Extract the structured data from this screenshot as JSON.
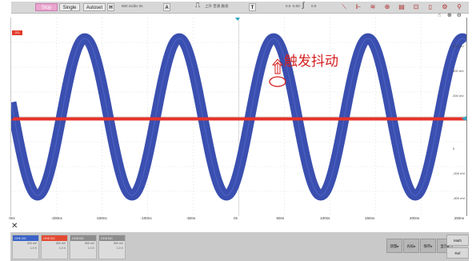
{
  "toolbar": {
    "run_label": "Stop",
    "single_label": "Single",
    "autoset_label": "Autoset",
    "h_label": "H",
    "timebase": "500 ns/div  0s",
    "a_label": "A",
    "trigger_mode": "上升 普通 触发",
    "t_label": "T",
    "trigger_level": "0.0  -0.00",
    "trigger_extra": "0.0"
  },
  "channel_tag": "2/1",
  "annotation": "触发抖动",
  "x_ticks": [
    "0ns",
    "-200ns",
    "-150ns",
    "-100ns",
    "-50ns",
    "0s",
    "50ns",
    "100ns",
    "150ns",
    "200ns",
    "250ns"
  ],
  "y_ticks": [
    "400 mV",
    "300 mV",
    "200 mV",
    "0",
    "-200 mV",
    "-300 mV"
  ],
  "channels": [
    {
      "name": "CH1",
      "value": "500 mV",
      "coupling": "DC",
      "probe": "1.0 X",
      "color": "#3a62c7"
    },
    {
      "name": "CH2",
      "value": "500 mV",
      "coupling": "DC",
      "probe": "1.0 X",
      "color": "#e34a33"
    },
    {
      "name": "CH3",
      "value": "500 mV",
      "coupling": "DC",
      "probe": "1.0 X",
      "color": "#8c8c8c"
    },
    {
      "name": "CH4",
      "value": "500 mV",
      "coupling": "DC",
      "probe": "1.0 X",
      "color": "#8c8c8c"
    }
  ],
  "menus": [
    "测量",
    "光标",
    "保存",
    "显示"
  ],
  "side_buttons": [
    "Math",
    "Ref"
  ],
  "colors": {
    "ch1": "#3a4faf",
    "ch2": "#e6332a",
    "annotation": "#d42020"
  }
}
